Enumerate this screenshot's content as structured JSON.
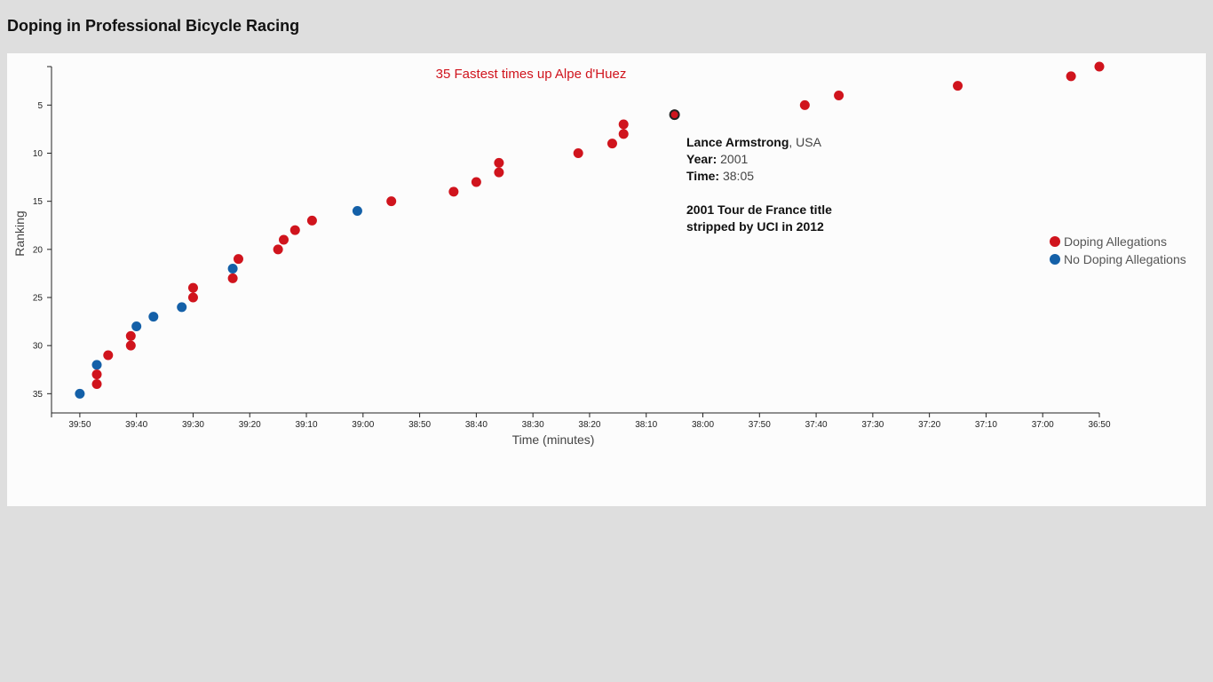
{
  "page": {
    "title": "Doping in Professional Bicycle Racing"
  },
  "colors": {
    "doping": "#d0141d",
    "clean": "#1460a8"
  },
  "chart_data": {
    "type": "scatter",
    "title": "35 Fastest times up Alpe d'Huez",
    "xlabel": "Time (minutes)",
    "ylabel": "Ranking",
    "x_axis_reversed": true,
    "xlim": [
      "39:55",
      "36:50"
    ],
    "ylim": [
      1,
      37
    ],
    "x_ticks": [
      "39:50",
      "39:40",
      "39:30",
      "39:20",
      "39:10",
      "39:00",
      "38:50",
      "38:40",
      "38:30",
      "38:20",
      "38:10",
      "38:00",
      "37:50",
      "37:40",
      "37:30",
      "37:20",
      "37:10",
      "37:00",
      "36:50"
    ],
    "y_ticks": [
      5,
      10,
      15,
      20,
      25,
      30,
      35
    ],
    "grid": false,
    "legend_position": "right",
    "legend": [
      {
        "label": "Doping Allegations",
        "color_key": "doping"
      },
      {
        "label": "No Doping Allegations",
        "color_key": "clean"
      }
    ],
    "points": [
      {
        "rank": 1,
        "time": "36:50",
        "doping": true
      },
      {
        "rank": 2,
        "time": "36:55",
        "doping": true
      },
      {
        "rank": 3,
        "time": "37:15",
        "doping": true
      },
      {
        "rank": 4,
        "time": "37:36",
        "doping": true
      },
      {
        "rank": 5,
        "time": "37:42",
        "doping": true
      },
      {
        "rank": 6,
        "time": "38:05",
        "doping": true,
        "highlighted": true
      },
      {
        "rank": 7,
        "time": "38:14",
        "doping": true
      },
      {
        "rank": 8,
        "time": "38:14",
        "doping": true
      },
      {
        "rank": 9,
        "time": "38:16",
        "doping": true
      },
      {
        "rank": 10,
        "time": "38:22",
        "doping": true
      },
      {
        "rank": 11,
        "time": "38:36",
        "doping": true
      },
      {
        "rank": 12,
        "time": "38:36",
        "doping": true
      },
      {
        "rank": 13,
        "time": "38:40",
        "doping": true
      },
      {
        "rank": 14,
        "time": "38:44",
        "doping": true
      },
      {
        "rank": 15,
        "time": "38:55",
        "doping": true
      },
      {
        "rank": 16,
        "time": "39:01",
        "doping": false
      },
      {
        "rank": 17,
        "time": "39:09",
        "doping": true
      },
      {
        "rank": 18,
        "time": "39:12",
        "doping": true
      },
      {
        "rank": 19,
        "time": "39:14",
        "doping": true
      },
      {
        "rank": 20,
        "time": "39:15",
        "doping": true
      },
      {
        "rank": 21,
        "time": "39:22",
        "doping": true
      },
      {
        "rank": 22,
        "time": "39:23",
        "doping": false
      },
      {
        "rank": 23,
        "time": "39:23",
        "doping": true
      },
      {
        "rank": 24,
        "time": "39:30",
        "doping": true
      },
      {
        "rank": 25,
        "time": "39:30",
        "doping": true
      },
      {
        "rank": 26,
        "time": "39:32",
        "doping": false
      },
      {
        "rank": 27,
        "time": "39:37",
        "doping": false
      },
      {
        "rank": 28,
        "time": "39:40",
        "doping": false
      },
      {
        "rank": 29,
        "time": "39:41",
        "doping": true
      },
      {
        "rank": 30,
        "time": "39:41",
        "doping": true
      },
      {
        "rank": 31,
        "time": "39:45",
        "doping": true
      },
      {
        "rank": 32,
        "time": "39:47",
        "doping": false
      },
      {
        "rank": 33,
        "time": "39:47",
        "doping": true
      },
      {
        "rank": 34,
        "time": "39:47",
        "doping": true
      },
      {
        "rank": 35,
        "time": "39:50",
        "doping": false
      }
    ],
    "tooltip": {
      "name": "Lance Armstrong",
      "nationality": ", USA",
      "year_label": "Year:",
      "year": "2001",
      "time_label": "Time:",
      "time": "38:05",
      "note_line1": "2001 Tour de France title",
      "note_line2": "stripped by UCI in 2012"
    }
  }
}
